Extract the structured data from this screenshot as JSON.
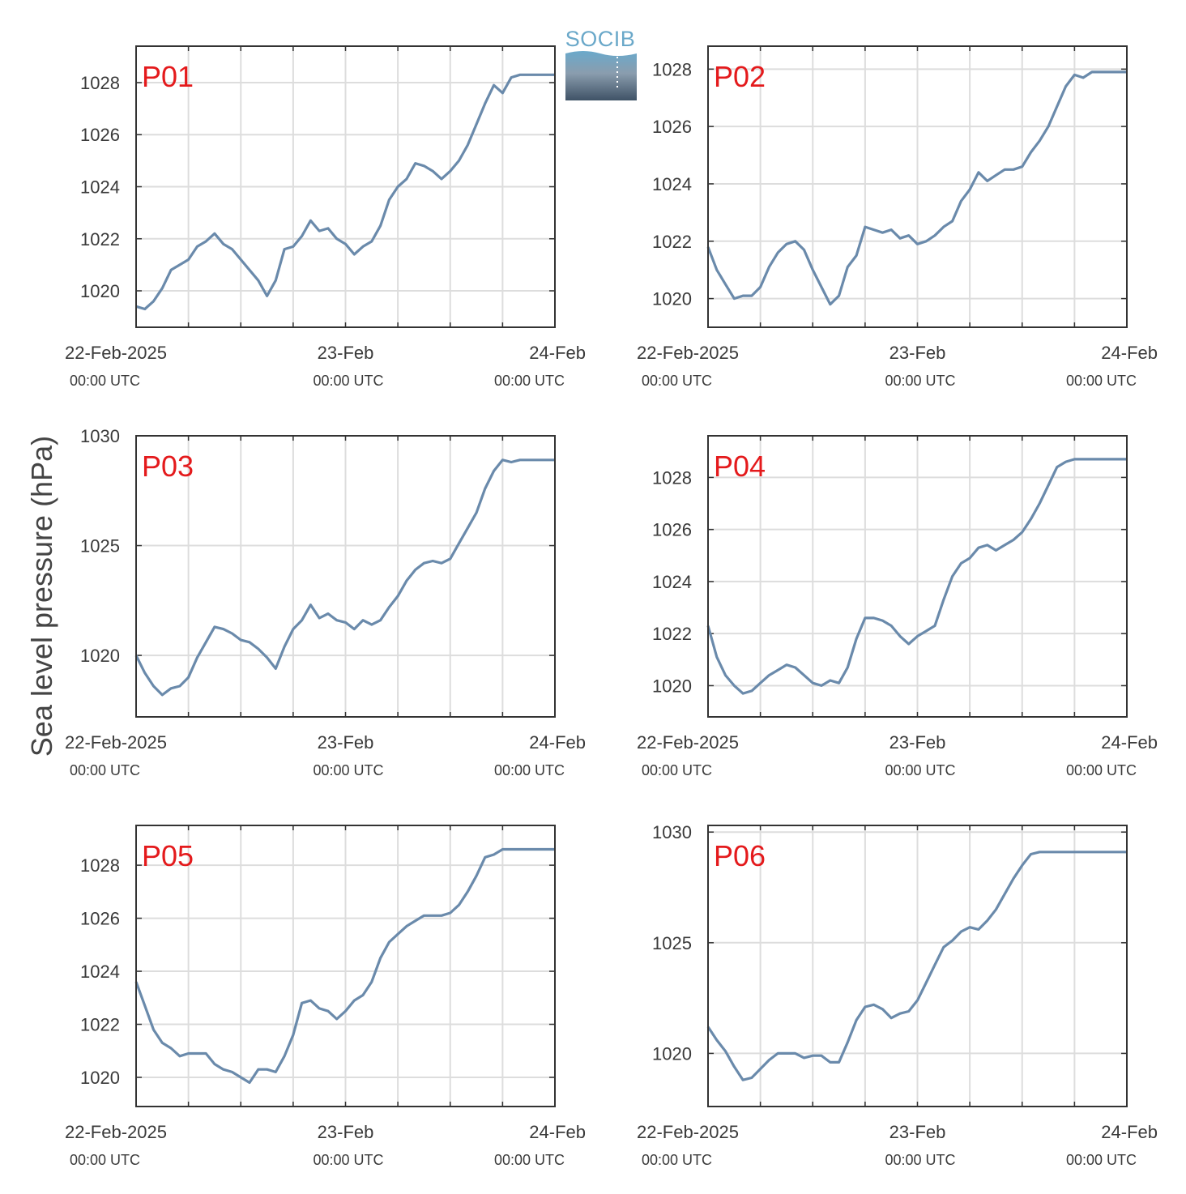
{
  "colors": {
    "line": "#6a8aab",
    "panel_label": "#e41a1c",
    "grid": "#dddddd",
    "axis": "#333333"
  },
  "logo": {
    "text": "SOCIB"
  },
  "ylabel": "Sea level pressure (hPa)",
  "x_axis": {
    "major_ticks": [
      {
        "x": 0,
        "label": "22-Feb-2025",
        "sub": "00:00 UTC"
      },
      {
        "x": 24,
        "label": "23-Feb",
        "sub": "00:00 UTC"
      },
      {
        "x": 48,
        "label": "24-Feb",
        "sub": "00:00 UTC"
      }
    ]
  },
  "chart_data": [
    {
      "type": "line",
      "panel": "P01",
      "x_unit": "hours since 22-Feb-2025 00:00 UTC",
      "xlim": [
        0,
        48
      ],
      "ylim": [
        1018.6,
        1029.4
      ],
      "yticks": [
        1020,
        1022,
        1024,
        1026,
        1028
      ],
      "x": [
        0,
        1,
        2,
        3,
        4,
        5,
        6,
        7,
        8,
        9,
        10,
        11,
        12,
        13,
        14,
        15,
        16,
        17,
        18,
        19,
        20,
        21,
        22,
        23,
        24,
        25,
        26,
        27,
        28,
        29,
        30,
        31,
        32,
        33,
        34,
        35,
        36,
        37,
        38,
        39,
        40,
        41,
        42,
        43,
        44,
        45,
        46,
        47,
        48
      ],
      "y": [
        1019.4,
        1019.3,
        1019.6,
        1020.1,
        1020.8,
        1021.0,
        1021.2,
        1021.7,
        1021.9,
        1022.2,
        1021.8,
        1021.6,
        1021.2,
        1020.8,
        1020.4,
        1019.8,
        1020.4,
        1021.6,
        1021.7,
        1022.1,
        1022.7,
        1022.3,
        1022.4,
        1022.0,
        1021.8,
        1021.4,
        1021.7,
        1021.9,
        1022.5,
        1023.5,
        1024.0,
        1024.3,
        1024.9,
        1024.8,
        1024.6,
        1024.3,
        1024.6,
        1025.0,
        1025.6,
        1026.4,
        1027.2,
        1027.9,
        1027.6,
        1028.2,
        1028.3,
        1028.3,
        1028.3,
        1028.3,
        1028.3
      ]
    },
    {
      "type": "line",
      "panel": "P02",
      "x_unit": "hours since 22-Feb-2025 00:00 UTC",
      "xlim": [
        0,
        48
      ],
      "ylim": [
        1019.0,
        1028.8
      ],
      "yticks": [
        1020,
        1022,
        1024,
        1026,
        1028
      ],
      "x": [
        0,
        1,
        2,
        3,
        4,
        5,
        6,
        7,
        8,
        9,
        10,
        11,
        12,
        13,
        14,
        15,
        16,
        17,
        18,
        19,
        20,
        21,
        22,
        23,
        24,
        25,
        26,
        27,
        28,
        29,
        30,
        31,
        32,
        33,
        34,
        35,
        36,
        37,
        38,
        39,
        40,
        41,
        42,
        43,
        44,
        45,
        46,
        47,
        48
      ],
      "y": [
        1021.8,
        1021.0,
        1020.5,
        1020.0,
        1020.1,
        1020.1,
        1020.4,
        1021.1,
        1021.6,
        1021.9,
        1022.0,
        1021.7,
        1021.0,
        1020.4,
        1019.8,
        1020.1,
        1021.1,
        1021.5,
        1022.5,
        1022.4,
        1022.3,
        1022.4,
        1022.1,
        1022.2,
        1021.9,
        1022.0,
        1022.2,
        1022.5,
        1022.7,
        1023.4,
        1023.8,
        1024.4,
        1024.1,
        1024.3,
        1024.5,
        1024.5,
        1024.6,
        1025.1,
        1025.5,
        1026.0,
        1026.7,
        1027.4,
        1027.8,
        1027.7,
        1027.9,
        1027.9,
        1027.9,
        1027.9,
        1027.9
      ]
    },
    {
      "type": "line",
      "panel": "P03",
      "x_unit": "hours since 22-Feb-2025 00:00 UTC",
      "xlim": [
        0,
        48
      ],
      "ylim": [
        1017.2,
        1030.0
      ],
      "yticks": [
        1020,
        1025,
        1030
      ],
      "x": [
        0,
        1,
        2,
        3,
        4,
        5,
        6,
        7,
        8,
        9,
        10,
        11,
        12,
        13,
        14,
        15,
        16,
        17,
        18,
        19,
        20,
        21,
        22,
        23,
        24,
        25,
        26,
        27,
        28,
        29,
        30,
        31,
        32,
        33,
        34,
        35,
        36,
        37,
        38,
        39,
        40,
        41,
        42,
        43,
        44,
        45,
        46,
        47,
        48
      ],
      "y": [
        1020.0,
        1019.2,
        1018.6,
        1018.2,
        1018.5,
        1018.6,
        1019.0,
        1019.9,
        1020.6,
        1021.3,
        1021.2,
        1021.0,
        1020.7,
        1020.6,
        1020.3,
        1019.9,
        1019.4,
        1020.4,
        1021.2,
        1021.6,
        1022.3,
        1021.7,
        1021.9,
        1021.6,
        1021.5,
        1021.2,
        1021.6,
        1021.4,
        1021.6,
        1022.2,
        1022.7,
        1023.4,
        1023.9,
        1024.2,
        1024.3,
        1024.2,
        1024.4,
        1025.1,
        1025.8,
        1026.5,
        1027.6,
        1028.4,
        1028.9,
        1028.8,
        1028.9,
        1028.9,
        1028.9,
        1028.9,
        1028.9
      ]
    },
    {
      "type": "line",
      "panel": "P04",
      "x_unit": "hours since 22-Feb-2025 00:00 UTC",
      "xlim": [
        0,
        48
      ],
      "ylim": [
        1018.8,
        1029.6
      ],
      "yticks": [
        1020,
        1022,
        1024,
        1026,
        1028
      ],
      "x": [
        0,
        1,
        2,
        3,
        4,
        5,
        6,
        7,
        8,
        9,
        10,
        11,
        12,
        13,
        14,
        15,
        16,
        17,
        18,
        19,
        20,
        21,
        22,
        23,
        24,
        25,
        26,
        27,
        28,
        29,
        30,
        31,
        32,
        33,
        34,
        35,
        36,
        37,
        38,
        39,
        40,
        41,
        42,
        43,
        44,
        45,
        46,
        47,
        48
      ],
      "y": [
        1022.3,
        1021.1,
        1020.4,
        1020.0,
        1019.7,
        1019.8,
        1020.1,
        1020.4,
        1020.6,
        1020.8,
        1020.7,
        1020.4,
        1020.1,
        1020.0,
        1020.2,
        1020.1,
        1020.7,
        1021.8,
        1022.6,
        1022.6,
        1022.5,
        1022.3,
        1021.9,
        1021.6,
        1021.9,
        1022.1,
        1022.3,
        1023.3,
        1024.2,
        1024.7,
        1024.9,
        1025.3,
        1025.4,
        1025.2,
        1025.4,
        1025.6,
        1025.9,
        1026.4,
        1027.0,
        1027.7,
        1028.4,
        1028.6,
        1028.7,
        1028.7,
        1028.7,
        1028.7,
        1028.7,
        1028.7,
        1028.7
      ]
    },
    {
      "type": "line",
      "panel": "P05",
      "x_unit": "hours since 22-Feb-2025 00:00 UTC",
      "xlim": [
        0,
        48
      ],
      "ylim": [
        1018.9,
        1029.5
      ],
      "yticks": [
        1020,
        1022,
        1024,
        1026,
        1028
      ],
      "x": [
        0,
        1,
        2,
        3,
        4,
        5,
        6,
        7,
        8,
        9,
        10,
        11,
        12,
        13,
        14,
        15,
        16,
        17,
        18,
        19,
        20,
        21,
        22,
        23,
        24,
        25,
        26,
        27,
        28,
        29,
        30,
        31,
        32,
        33,
        34,
        35,
        36,
        37,
        38,
        39,
        40,
        41,
        42,
        43,
        44,
        45,
        46,
        47,
        48
      ],
      "y": [
        1023.6,
        1022.7,
        1021.8,
        1021.3,
        1021.1,
        1020.8,
        1020.9,
        1020.9,
        1020.9,
        1020.5,
        1020.3,
        1020.2,
        1020.0,
        1019.8,
        1020.3,
        1020.3,
        1020.2,
        1020.8,
        1021.6,
        1022.8,
        1022.9,
        1022.6,
        1022.5,
        1022.2,
        1022.5,
        1022.9,
        1023.1,
        1023.6,
        1024.5,
        1025.1,
        1025.4,
        1025.7,
        1025.9,
        1026.1,
        1026.1,
        1026.1,
        1026.2,
        1026.5,
        1027.0,
        1027.6,
        1028.3,
        1028.4,
        1028.6,
        1028.6,
        1028.6,
        1028.6,
        1028.6,
        1028.6,
        1028.6
      ]
    },
    {
      "type": "line",
      "panel": "P06",
      "x_unit": "hours since 22-Feb-2025 00:00 UTC",
      "xlim": [
        0,
        48
      ],
      "ylim": [
        1017.6,
        1030.3
      ],
      "yticks": [
        1020,
        1025,
        1030
      ],
      "x": [
        0,
        1,
        2,
        3,
        4,
        5,
        6,
        7,
        8,
        9,
        10,
        11,
        12,
        13,
        14,
        15,
        16,
        17,
        18,
        19,
        20,
        21,
        22,
        23,
        24,
        25,
        26,
        27,
        28,
        29,
        30,
        31,
        32,
        33,
        34,
        35,
        36,
        37,
        38,
        39,
        40,
        41,
        42,
        43,
        44,
        45,
        46,
        47,
        48
      ],
      "y": [
        1021.2,
        1020.6,
        1020.1,
        1019.4,
        1018.8,
        1018.9,
        1019.3,
        1019.7,
        1020.0,
        1020.0,
        1020.0,
        1019.8,
        1019.9,
        1019.9,
        1019.6,
        1019.6,
        1020.5,
        1021.5,
        1022.1,
        1022.2,
        1022.0,
        1021.6,
        1021.8,
        1021.9,
        1022.4,
        1023.2,
        1024.0,
        1024.8,
        1025.1,
        1025.5,
        1025.7,
        1025.6,
        1026.0,
        1026.5,
        1027.2,
        1027.9,
        1028.5,
        1029.0,
        1029.1,
        1029.1,
        1029.1,
        1029.1,
        1029.1,
        1029.1,
        1029.1,
        1029.1,
        1029.1,
        1029.1,
        1029.1
      ]
    }
  ]
}
